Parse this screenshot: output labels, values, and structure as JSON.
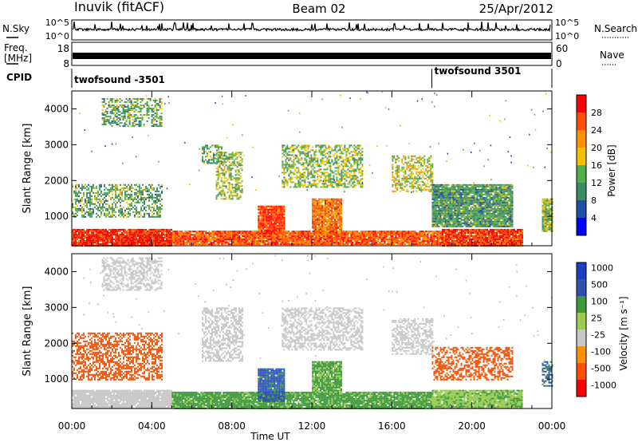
{
  "header": {
    "radar_name": "Inuvik (fitACF)",
    "beam": "Beam 02",
    "date": "25/Apr/2012"
  },
  "noise_panel": {
    "left_label": "N.Sky",
    "right_label": "N.Search",
    "left_ticks": [
      "10^5",
      "10^0"
    ],
    "right_ticks": [
      "10^5",
      "10^0"
    ]
  },
  "freq_panel": {
    "left_label_line1": "Freq.",
    "left_label_line2": "[MHz]",
    "right_label": "Nave",
    "left_ticks": [
      "18",
      "8"
    ],
    "right_ticks": [
      "60",
      "0"
    ]
  },
  "cpid_panel": {
    "label": "CPID",
    "programs": [
      {
        "name": "twofsound -3501",
        "start_hour": 0.0
      },
      {
        "name": "twofsound 3501",
        "start_hour": 18.0
      }
    ]
  },
  "colors": {
    "power_scale": [
      "#0000ff",
      "#1f4fa8",
      "#3d8a66",
      "#52b04c",
      "#f0c000",
      "#ff9000",
      "#ff5000",
      "#ff0000"
    ],
    "velocity_scale": [
      "#ff0000",
      "#ff5000",
      "#ff9000",
      "#c8c8c8",
      "#9acd50",
      "#3d9a3d",
      "#3050b0",
      "#1840c0"
    ],
    "ground_scatter": "#bebebe"
  },
  "chart_data": [
    {
      "type": "heatmap",
      "name": "power",
      "ylabel": "Slant Range [km]",
      "ylim": [
        180,
        4500
      ],
      "xlim": [
        0,
        24
      ],
      "yticks": [
        "1000",
        "2000",
        "3000",
        "4000"
      ],
      "colorbar": {
        "label": "Power [dB]",
        "ticks": [
          "4",
          "8",
          "12",
          "16",
          "20",
          "24",
          "28"
        ],
        "range": [
          0,
          30
        ]
      },
      "regions": [
        {
          "x": [
            0.0,
            5.0
          ],
          "y": [
            200,
            650
          ],
          "value": 27
        },
        {
          "x": [
            5.0,
            18.5
          ],
          "y": [
            200,
            600
          ],
          "value": 24
        },
        {
          "x": [
            18.5,
            22.5
          ],
          "y": [
            200,
            650
          ],
          "value": 26
        },
        {
          "x": [
            0.0,
            4.5
          ],
          "y": [
            1000,
            1900
          ],
          "value": 12
        },
        {
          "x": [
            1.5,
            4.5
          ],
          "y": [
            3500,
            4300
          ],
          "value": 12
        },
        {
          "x": [
            6.5,
            7.5
          ],
          "y": [
            2500,
            3000
          ],
          "value": 12
        },
        {
          "x": [
            7.2,
            8.5
          ],
          "y": [
            1500,
            2800
          ],
          "value": 14
        },
        {
          "x": [
            9.3,
            10.6
          ],
          "y": [
            500,
            1300
          ],
          "value": 26
        },
        {
          "x": [
            10.5,
            14.5
          ],
          "y": [
            1800,
            3000
          ],
          "value": 14
        },
        {
          "x": [
            12.0,
            13.5
          ],
          "y": [
            500,
            1500
          ],
          "value": 22
        },
        {
          "x": [
            16.0,
            18.0
          ],
          "y": [
            1700,
            2700
          ],
          "value": 16
        },
        {
          "x": [
            18.0,
            22.0
          ],
          "y": [
            700,
            1900
          ],
          "value": 11
        },
        {
          "x": [
            23.5,
            24.0
          ],
          "y": [
            600,
            1500
          ],
          "value": 14
        }
      ]
    },
    {
      "type": "heatmap",
      "name": "velocity",
      "ylabel": "Slant Range [km]",
      "xlabel": "Time UT",
      "ylim": [
        180,
        4500
      ],
      "xlim": [
        0,
        24
      ],
      "yticks": [
        "1000",
        "2000",
        "3000",
        "4000"
      ],
      "xticks": [
        "00:00",
        "04:00",
        "08:00",
        "12:00",
        "16:00",
        "20:00",
        "00:00"
      ],
      "colorbar": {
        "label": "Velocity [m s⁻¹]",
        "ticks": [
          "1000",
          "500",
          "100",
          "25",
          "-25",
          "-100",
          "-500",
          "-1000"
        ]
      },
      "regions": [
        {
          "x": [
            0.0,
            5.0
          ],
          "y": [
            200,
            700
          ],
          "value": 0
        },
        {
          "x": [
            5.0,
            18.0
          ],
          "y": [
            200,
            650
          ],
          "value": 150
        },
        {
          "x": [
            18.0,
            22.5
          ],
          "y": [
            200,
            700
          ],
          "value": 80
        },
        {
          "x": [
            0.0,
            4.5
          ],
          "y": [
            1000,
            2300
          ],
          "value": -300
        },
        {
          "x": [
            1.5,
            4.5
          ],
          "y": [
            3500,
            4400
          ],
          "value": 0
        },
        {
          "x": [
            6.5,
            8.5
          ],
          "y": [
            1500,
            3000
          ],
          "value": 0
        },
        {
          "x": [
            9.3,
            10.6
          ],
          "y": [
            400,
            1300
          ],
          "value": 700
        },
        {
          "x": [
            10.5,
            14.5
          ],
          "y": [
            1800,
            3000
          ],
          "value": 0
        },
        {
          "x": [
            12.0,
            13.5
          ],
          "y": [
            600,
            1500
          ],
          "value": 120
        },
        {
          "x": [
            16.0,
            18.0
          ],
          "y": [
            1700,
            2700
          ],
          "value": 0
        },
        {
          "x": [
            18.0,
            22.0
          ],
          "y": [
            1000,
            1900
          ],
          "value": -250
        },
        {
          "x": [
            23.5,
            24.0
          ],
          "y": [
            800,
            1500
          ],
          "value": 600
        }
      ]
    }
  ]
}
